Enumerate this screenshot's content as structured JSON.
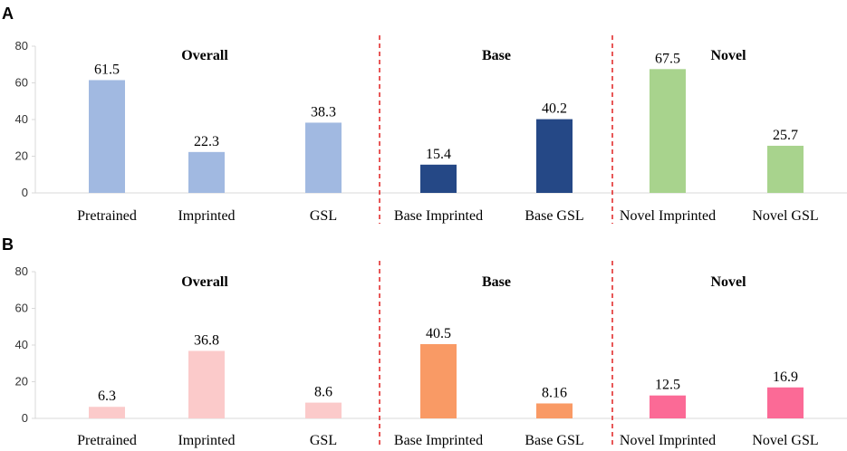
{
  "chart_data": [
    {
      "panel": "A",
      "type": "bar",
      "ylim": [
        0,
        80
      ],
      "yticks": [
        0,
        20,
        40,
        60,
        80
      ],
      "groups": [
        "Overall",
        "Base",
        "Novel"
      ],
      "categories": [
        "Pretrained",
        "Imprinted",
        "GSL",
        "Base Imprinted",
        "Base GSL",
        "Novel Imprinted",
        "Novel GSL"
      ],
      "values": [
        61.5,
        22.3,
        38.3,
        15.4,
        40.2,
        67.5,
        25.7
      ],
      "labels": [
        "61.5",
        "22.3",
        "38.3",
        "15.4",
        "40.2",
        "67.5",
        "25.7"
      ],
      "colors": [
        "#a1b9e1",
        "#a1b9e1",
        "#a1b9e1",
        "#254886",
        "#254886",
        "#a8d38d",
        "#a8d38d"
      ]
    },
    {
      "panel": "B",
      "type": "bar",
      "ylim": [
        0,
        80
      ],
      "yticks": [
        0,
        20,
        40,
        60,
        80
      ],
      "groups": [
        "Overall",
        "Base",
        "Novel"
      ],
      "categories": [
        "Pretrained",
        "Imprinted",
        "GSL",
        "Base Imprinted",
        "Base GSL",
        "Novel Imprinted",
        "Novel GSL"
      ],
      "values": [
        6.3,
        36.8,
        8.6,
        40.5,
        8.16,
        12.5,
        16.9
      ],
      "labels": [
        "6.3",
        "36.8",
        "8.6",
        "40.5",
        "8.16",
        "12.5",
        "16.9"
      ],
      "colors": [
        "#fbcaca",
        "#fbcaca",
        "#fbcaca",
        "#f99a65",
        "#f99a65",
        "#fb6a96",
        "#fb6a96"
      ]
    }
  ],
  "colors": {
    "divider": "#e02020",
    "axis": "#d9d9d9"
  }
}
